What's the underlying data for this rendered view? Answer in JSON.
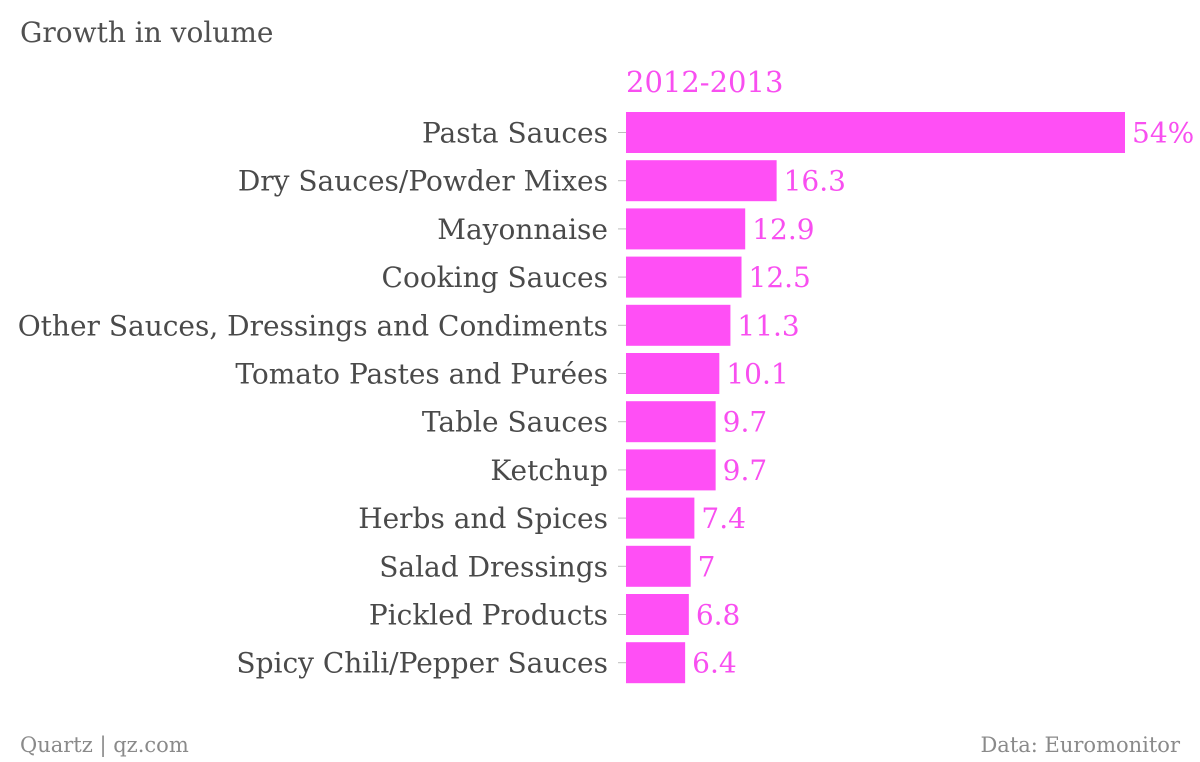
{
  "chart_data": {
    "type": "bar",
    "orientation": "horizontal",
    "title": "Growth in volume",
    "series_label": "2012-2013",
    "categories": [
      "Pasta Sauces",
      "Dry Sauces/Powder Mixes",
      "Mayonnaise",
      "Cooking Sauces",
      "Other Sauces, Dressings and Condiments",
      "Tomato Pastes and Purées",
      "Table Sauces",
      "Ketchup",
      "Herbs and Spices",
      "Salad Dressings",
      "Pickled Products",
      "Spicy Chili/Pepper Sauces"
    ],
    "values": [
      54,
      16.3,
      12.9,
      12.5,
      11.3,
      10.1,
      9.7,
      9.7,
      7.4,
      7,
      6.8,
      6.4
    ],
    "value_labels": [
      "54%",
      "16.3",
      "12.9",
      "12.5",
      "11.3",
      "10.1",
      "9.7",
      "9.7",
      "7.4",
      "7",
      "6.8",
      "6.4"
    ],
    "xlim": [
      0,
      54
    ],
    "bar_color": "#ff4ff5",
    "label_color": "#f84ff0",
    "grid": false,
    "legend": "none"
  },
  "footer": {
    "source_left": "Quartz | qz.com",
    "source_right": "Data: Euromonitor"
  }
}
